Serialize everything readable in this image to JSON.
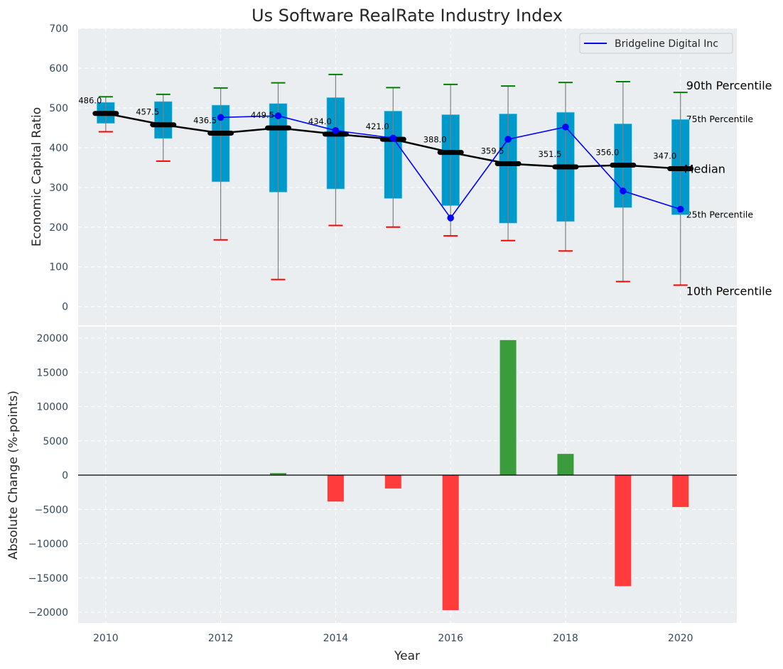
{
  "chart_data": [
    {
      "type": "box",
      "title": "Us Software RealRate Industry Index",
      "xlabel": "",
      "ylabel": "Economic Capital Ratio",
      "ylim": [
        -47,
        700
      ],
      "xlim": [
        2009.52,
        2020.98
      ],
      "yticks": [
        0,
        100,
        200,
        300,
        400,
        500,
        600,
        700
      ],
      "grid": true,
      "categories": [
        2010,
        2011,
        2012,
        2013,
        2014,
        2015,
        2016,
        2017,
        2018,
        2019,
        2020
      ],
      "percentiles": {
        "p10": [
          440,
          366,
          168,
          68,
          204,
          200,
          178,
          166,
          140,
          63,
          54
        ],
        "p25": [
          461,
          423,
          314,
          288,
          296,
          272,
          254,
          210,
          214,
          249,
          231
        ],
        "median": [
          486.0,
          457.5,
          436.5,
          449.5,
          434.0,
          421.0,
          388.0,
          359.5,
          351.5,
          356.0,
          347.0
        ],
        "p75": [
          514,
          516,
          507,
          511,
          526,
          492,
          483,
          485,
          489,
          460,
          471
        ],
        "p90": [
          528,
          534,
          550,
          563,
          584,
          551,
          559,
          555,
          564,
          566,
          539
        ]
      },
      "median_labels": [
        "486.0",
        "457.5",
        "436.5",
        "449.5",
        "434.0",
        "421.0",
        "388.0",
        "359.5",
        "351.5",
        "356.0",
        "347.0"
      ],
      "series": [
        {
          "name": "Bridgeline Digital Inc",
          "x": [
            2012,
            2013,
            2014,
            2015,
            2016,
            2017,
            2018,
            2019,
            2020
          ],
          "values": [
            476,
            480,
            443,
            424,
            223,
            421,
            452,
            291,
            245
          ],
          "color": "#0000ff"
        }
      ],
      "legend": {
        "entries": [
          "Bridgeline Digital Inc"
        ],
        "placement": "top-right"
      },
      "annotations": [
        {
          "text": "90th Percentile",
          "anchor": "p90",
          "color": "#000000"
        },
        {
          "text": "75th Percentile",
          "anchor": "p75",
          "color": "#0099cc"
        },
        {
          "text": "Median",
          "anchor": "median",
          "color": "#000000"
        },
        {
          "text": "25th Percentile",
          "anchor": "p25",
          "color": "#0099cc"
        },
        {
          "text": "10th Percentile",
          "anchor": "p10",
          "color": "#000000"
        }
      ],
      "colors": {
        "box": "#0099cc",
        "whisker": "#808080",
        "p90_cap": "#008000",
        "p10_cap": "#ff0000",
        "median": "#000000",
        "background": "#eaeef0"
      }
    },
    {
      "type": "bar",
      "title": "",
      "xlabel": "Year",
      "ylabel": "Absolute Change (%-points)",
      "ylim": [
        -21550,
        21660
      ],
      "xlim": [
        2009.52,
        2020.98
      ],
      "yticks": [
        -20000,
        -15000,
        -10000,
        -5000,
        0,
        5000,
        10000,
        15000,
        20000
      ],
      "xticks": [
        2010,
        2012,
        2014,
        2016,
        2018,
        2020
      ],
      "grid": true,
      "categories": [
        2010,
        2011,
        2012,
        2013,
        2014,
        2015,
        2016,
        2017,
        2018,
        2019,
        2020
      ],
      "values": [
        0,
        0,
        0,
        300,
        -3850,
        -1950,
        -19700,
        19700,
        3100,
        -16200,
        -4650
      ],
      "colors": {
        "positive": "#3a9c3a",
        "negative": "#ff3b3b",
        "zero_line": "#000000"
      }
    }
  ]
}
